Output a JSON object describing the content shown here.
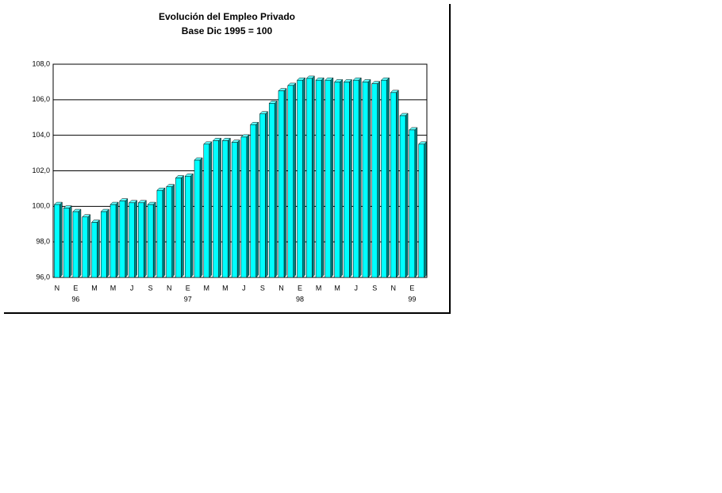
{
  "chart_data": {
    "type": "bar3d",
    "title": "Evolución del Empleo Privado",
    "subtitle": "Base Dic 1995 = 100",
    "categories": [
      "N",
      null,
      "E",
      null,
      "M",
      null,
      "M",
      null,
      "J",
      null,
      "S",
      null,
      "N",
      null,
      "E",
      null,
      "M",
      null,
      "M",
      null,
      "J",
      null,
      "S",
      null,
      "N",
      null,
      "E",
      null,
      "M",
      null,
      "M",
      null,
      "J",
      null,
      "S",
      null,
      "N",
      null,
      "E",
      null
    ],
    "category_years": [
      null,
      null,
      "96",
      null,
      null,
      null,
      null,
      null,
      null,
      null,
      null,
      null,
      null,
      null,
      "97",
      null,
      null,
      null,
      null,
      null,
      null,
      null,
      null,
      null,
      null,
      null,
      "98",
      null,
      null,
      null,
      null,
      null,
      null,
      null,
      null,
      null,
      null,
      null,
      "99",
      null
    ],
    "values": [
      100.1,
      99.9,
      99.7,
      99.4,
      99.1,
      99.7,
      100.1,
      100.3,
      100.2,
      100.2,
      100.1,
      100.9,
      101.1,
      101.6,
      101.7,
      102.6,
      103.5,
      103.7,
      103.7,
      103.6,
      103.9,
      104.6,
      105.2,
      105.8,
      106.5,
      106.8,
      107.1,
      107.2,
      107.1,
      107.1,
      107.0,
      107.0,
      107.1,
      107.0,
      106.9,
      107.1,
      106.4,
      105.1,
      104.3,
      103.5
    ],
    "color": "#00ffff",
    "ylim": [
      96,
      108
    ],
    "yticks": [
      {
        "value": 96,
        "label": "96,0"
      },
      {
        "value": 98,
        "label": "98,0"
      },
      {
        "value": 100,
        "label": "100,0"
      },
      {
        "value": 102,
        "label": "102,0"
      },
      {
        "value": 104,
        "label": "104,0"
      },
      {
        "value": 106,
        "label": "106,0"
      },
      {
        "value": 108,
        "label": "108,0"
      }
    ],
    "grid": true
  }
}
